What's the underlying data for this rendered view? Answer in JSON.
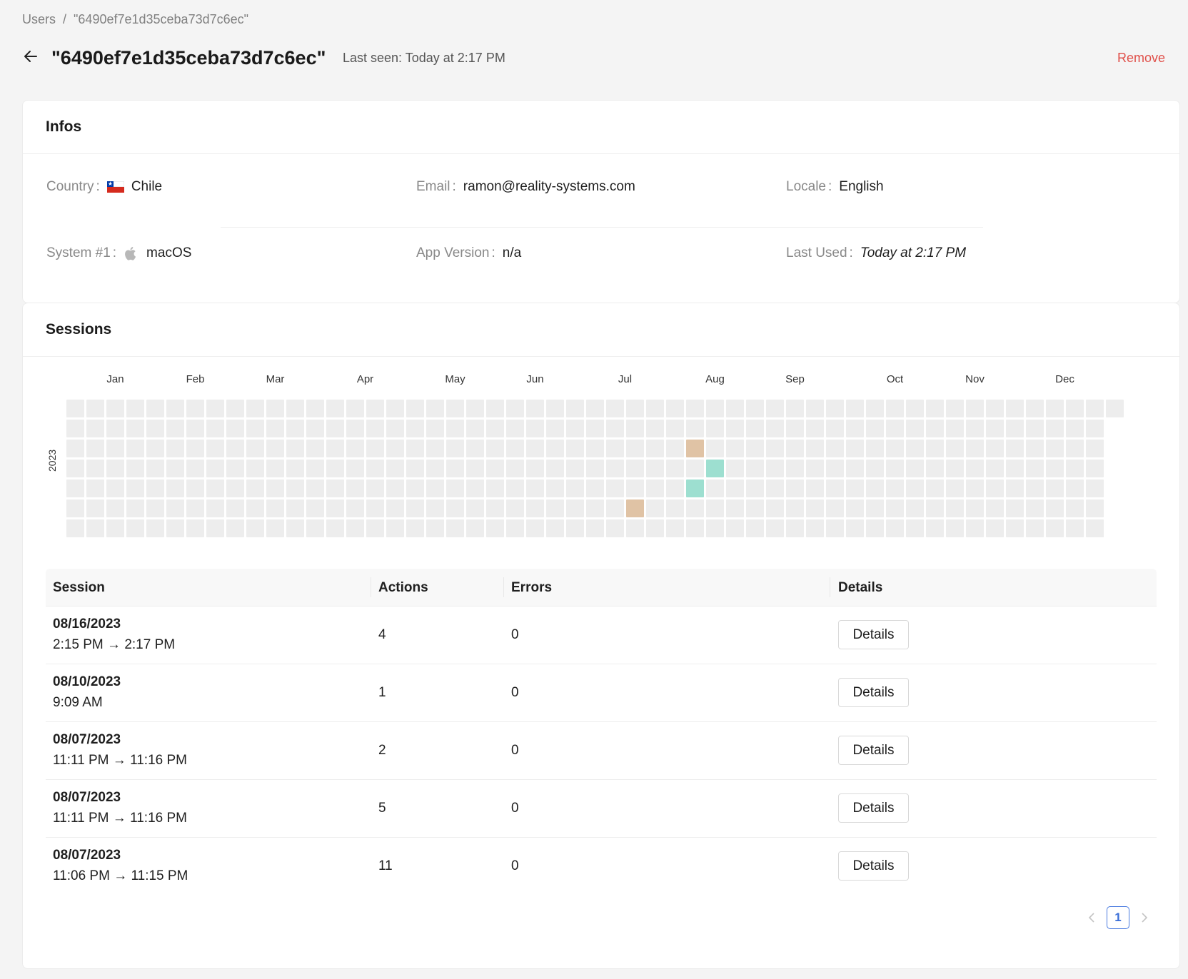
{
  "breadcrumb": {
    "root": "Users",
    "separator": "/",
    "current": "\"6490ef7e1d35ceba73d7c6ec\""
  },
  "header": {
    "title": "\"6490ef7e1d35ceba73d7c6ec\"",
    "last_seen": "Last seen: Today at 2:17 PM",
    "remove_label": "Remove",
    "back_icon": "arrow-left-icon"
  },
  "infos": {
    "title": "Infos",
    "country": {
      "label": "Country",
      "value": "Chile",
      "icon": "chile-flag-icon"
    },
    "email": {
      "label": "Email",
      "value": "ramon@reality-systems.com"
    },
    "locale": {
      "label": "Locale",
      "value": "English"
    },
    "system": {
      "label": "System #1",
      "value": "macOS",
      "icon": "apple-icon"
    },
    "app_version": {
      "label": "App Version",
      "value": "n/a"
    },
    "last_used": {
      "label": "Last Used",
      "value": "Today at 2:17 PM"
    }
  },
  "sessions": {
    "title": "Sessions",
    "heatmap": {
      "year": "2023",
      "months": [
        "Jan",
        "Feb",
        "Mar",
        "Apr",
        "May",
        "Jun",
        "Jul",
        "Aug",
        "Sep",
        "Oct",
        "Nov",
        "Dec"
      ],
      "colors": {
        "empty": "#ededed",
        "tan": "#e0c3a5",
        "teal": "#9ddfd0"
      },
      "active_days": [
        {
          "week": 31,
          "day": 2,
          "level": "tan"
        },
        {
          "week": 32,
          "day": 3,
          "level": "teal"
        },
        {
          "week": 31,
          "day": 4,
          "level": "teal"
        },
        {
          "week": 28,
          "day": 5,
          "level": "tan"
        }
      ]
    },
    "table": {
      "columns": [
        "Session",
        "Actions",
        "Errors",
        "Details"
      ],
      "rows": [
        {
          "date": "08/16/2023",
          "time": "2:15 PM → 2:17 PM",
          "actions": "4",
          "errors": "0",
          "details": "Details"
        },
        {
          "date": "08/10/2023",
          "time": "9:09 AM",
          "actions": "1",
          "errors": "0",
          "details": "Details"
        },
        {
          "date": "08/07/2023",
          "time": "11:11 PM → 11:16 PM",
          "actions": "2",
          "errors": "0",
          "details": "Details"
        },
        {
          "date": "08/07/2023",
          "time": "11:11 PM → 11:16 PM",
          "actions": "5",
          "errors": "0",
          "details": "Details"
        },
        {
          "date": "08/07/2023",
          "time": "11:06 PM → 11:15 PM",
          "actions": "11",
          "errors": "0",
          "details": "Details"
        }
      ]
    },
    "pagination": {
      "current_page": "1",
      "prev_icon": "chevron-left-icon",
      "next_icon": "chevron-right-icon"
    }
  }
}
